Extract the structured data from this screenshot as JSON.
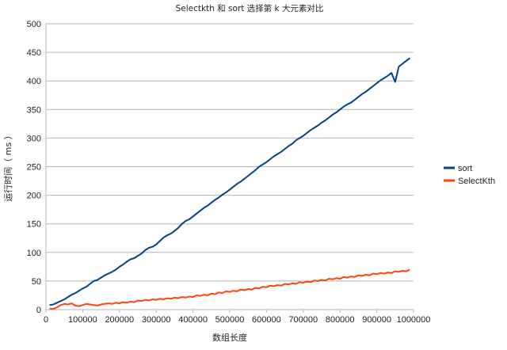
{
  "chart_data": {
    "type": "line",
    "title": "Selectkth 和 sort 选择第 k 大元素对比",
    "xlabel": "数组长度",
    "ylabel": "运行时间（ ms ）",
    "xlim": [
      0,
      1000000
    ],
    "ylim": [
      0,
      500
    ],
    "x_ticks": [
      0,
      100000,
      200000,
      300000,
      400000,
      500000,
      600000,
      700000,
      800000,
      900000,
      1000000
    ],
    "y_ticks": [
      0,
      50,
      100,
      150,
      200,
      250,
      300,
      350,
      400,
      450,
      500
    ],
    "grid": "horizontal",
    "legend_position": "right",
    "x": [
      10000,
      20000,
      30000,
      40000,
      50000,
      60000,
      70000,
      80000,
      90000,
      100000,
      110000,
      120000,
      130000,
      140000,
      150000,
      160000,
      170000,
      180000,
      190000,
      200000,
      210000,
      220000,
      230000,
      240000,
      250000,
      260000,
      270000,
      280000,
      290000,
      300000,
      310000,
      320000,
      330000,
      340000,
      350000,
      360000,
      370000,
      380000,
      390000,
      400000,
      410000,
      420000,
      430000,
      440000,
      450000,
      460000,
      470000,
      480000,
      490000,
      500000,
      510000,
      520000,
      530000,
      540000,
      550000,
      560000,
      570000,
      580000,
      590000,
      600000,
      610000,
      620000,
      630000,
      640000,
      650000,
      660000,
      670000,
      680000,
      690000,
      700000,
      710000,
      720000,
      730000,
      740000,
      750000,
      760000,
      770000,
      780000,
      790000,
      800000,
      810000,
      820000,
      830000,
      840000,
      850000,
      860000,
      870000,
      880000,
      890000,
      900000,
      910000,
      920000,
      930000,
      940000,
      950000,
      960000,
      970000,
      980000,
      990000
    ],
    "series": [
      {
        "name": "sort",
        "color": "#004586",
        "values": [
          8,
          9,
          12,
          15,
          18,
          22,
          26,
          29,
          33,
          37,
          40,
          45,
          50,
          52,
          56,
          60,
          63,
          66,
          70,
          75,
          79,
          84,
          88,
          90,
          94,
          98,
          104,
          108,
          110,
          114,
          120,
          126,
          130,
          133,
          138,
          143,
          150,
          155,
          158,
          163,
          168,
          173,
          178,
          182,
          187,
          192,
          196,
          201,
          205,
          210,
          215,
          220,
          224,
          229,
          234,
          239,
          244,
          250,
          254,
          258,
          263,
          268,
          272,
          276,
          281,
          286,
          290,
          296,
          300,
          304,
          309,
          314,
          318,
          322,
          327,
          331,
          336,
          341,
          345,
          350,
          355,
          359,
          362,
          367,
          372,
          377,
          381,
          386,
          391,
          396,
          401,
          405,
          409,
          414,
          398,
          425,
          430,
          435,
          440
        ]
      },
      {
        "name": "SelectKth",
        "color": "#ff420e",
        "values": [
          2,
          1,
          4,
          8,
          10,
          9,
          11,
          7,
          6,
          8,
          10,
          9,
          8,
          7,
          9,
          10,
          11,
          10,
          12,
          11,
          13,
          12,
          14,
          13,
          16,
          15,
          17,
          16,
          18,
          17,
          19,
          18,
          20,
          19,
          21,
          20,
          22,
          21,
          23,
          22,
          25,
          24,
          26,
          25,
          28,
          27,
          30,
          29,
          32,
          31,
          33,
          32,
          35,
          34,
          36,
          35,
          38,
          37,
          40,
          39,
          42,
          41,
          43,
          42,
          45,
          44,
          46,
          45,
          48,
          47,
          49,
          48,
          51,
          50,
          52,
          51,
          54,
          53,
          55,
          54,
          57,
          56,
          58,
          57,
          60,
          59,
          61,
          60,
          63,
          62,
          64,
          63,
          65,
          64,
          67,
          66,
          68,
          67,
          70
        ]
      }
    ]
  }
}
